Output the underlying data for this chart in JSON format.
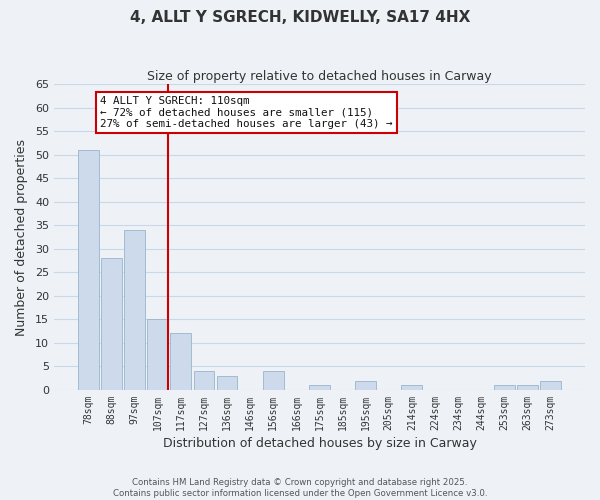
{
  "title": "4, ALLT Y SGRECH, KIDWELLY, SA17 4HX",
  "subtitle": "Size of property relative to detached houses in Carway",
  "xlabel": "Distribution of detached houses by size in Carway",
  "ylabel": "Number of detached properties",
  "bar_color": "#ccdaeb",
  "bar_edge_color": "#9ab4cc",
  "categories": [
    "78sqm",
    "88sqm",
    "97sqm",
    "107sqm",
    "117sqm",
    "127sqm",
    "136sqm",
    "146sqm",
    "156sqm",
    "166sqm",
    "175sqm",
    "185sqm",
    "195sqm",
    "205sqm",
    "214sqm",
    "224sqm",
    "234sqm",
    "244sqm",
    "253sqm",
    "263sqm",
    "273sqm"
  ],
  "values": [
    51,
    28,
    34,
    15,
    12,
    4,
    3,
    0,
    4,
    0,
    1,
    0,
    2,
    0,
    1,
    0,
    0,
    0,
    1,
    1,
    2
  ],
  "ylim": [
    0,
    65
  ],
  "yticks": [
    0,
    5,
    10,
    15,
    20,
    25,
    30,
    35,
    40,
    45,
    50,
    55,
    60,
    65
  ],
  "vline_color": "#cc0000",
  "annotation_title": "4 ALLT Y SGRECH: 110sqm",
  "annotation_line1": "← 72% of detached houses are smaller (115)",
  "annotation_line2": "27% of semi-detached houses are larger (43) →",
  "annotation_box_facecolor": "#ffffff",
  "annotation_box_edgecolor": "#cc0000",
  "grid_color": "#c8d8e8",
  "background_color": "#eef2f7",
  "plot_bg_color": "#eef2f7",
  "title_fontsize": 11,
  "subtitle_fontsize": 9,
  "footer1": "Contains HM Land Registry data © Crown copyright and database right 2025.",
  "footer2": "Contains public sector information licensed under the Open Government Licence v3.0."
}
